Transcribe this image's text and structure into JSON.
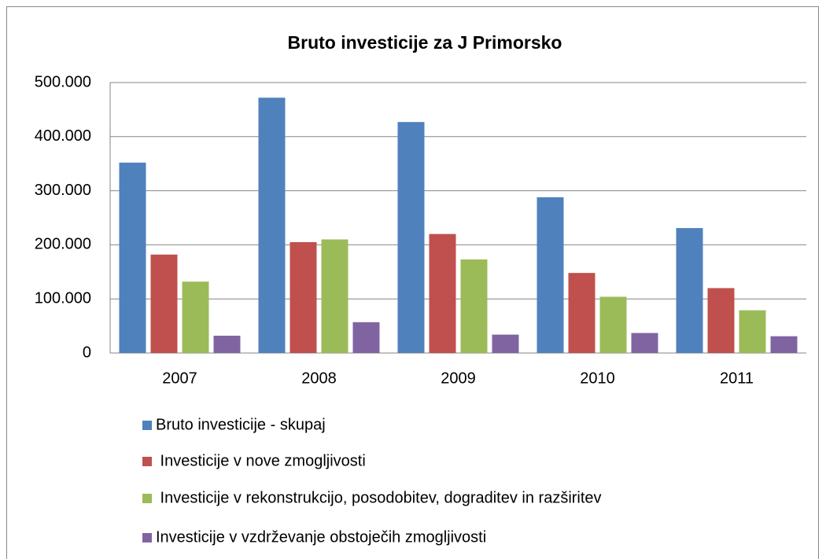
{
  "chart_data": {
    "type": "bar",
    "title": "Bruto investicije za J Primorsko",
    "categories": [
      "2007",
      "2008",
      "2009",
      "2010",
      "2011"
    ],
    "series": [
      {
        "name": "Bruto investicije - skupaj",
        "color": "#4f81bd",
        "values": [
          352000,
          472000,
          427000,
          288000,
          231000
        ]
      },
      {
        "name": " Investicije v nove zmogljivosti",
        "color": "#c0504d",
        "values": [
          182000,
          205000,
          220000,
          148000,
          120000
        ]
      },
      {
        "name": " Investicije v rekonstrukcijo, posodobitev, dograditev in razširitev",
        "color": "#9bbb59",
        "values": [
          132000,
          210000,
          173000,
          104000,
          79000
        ]
      },
      {
        "name": "Investicije v vzdrževanje obstoječih zmogljivosti",
        "color": "#8064a2",
        "values": [
          32000,
          57000,
          34000,
          37000,
          31000
        ]
      }
    ],
    "ylim": [
      0,
      500000
    ],
    "yticks": [
      0,
      {
        "value": 100000,
        "label": "100.000"
      },
      {
        "value": 200000,
        "label": "200.000"
      },
      {
        "value": 300000,
        "label": "300.000"
      },
      {
        "value": 400000,
        "label": "400.000"
      },
      {
        "value": 500000,
        "label": "500.000"
      }
    ],
    "grid": true
  }
}
